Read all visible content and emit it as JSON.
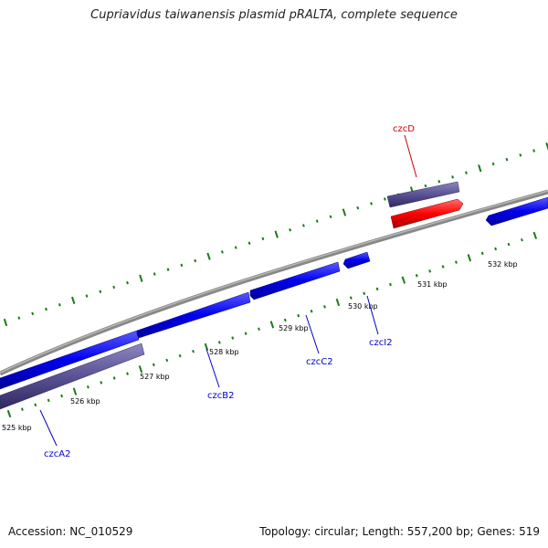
{
  "title": "Cupriavidus taiwanensis plasmid pRALTA, complete sequence",
  "footer": {
    "accession": "Accession: NC_010529",
    "summary": "Topology: circular; Length: 557,200 bp; Genes: 519"
  },
  "colors": {
    "backbone": "#888888",
    "gene_forward": "#0000ee",
    "gene_reverse_track": "#5a5294",
    "highlight": "#ff0000",
    "tick": "#1a7a1a",
    "label_blue": "#0000cc",
    "label_red": "#cc0000"
  },
  "ticks": {
    "labels": [
      "525 kbp",
      "526 kbp",
      "527 kbp",
      "528 kbp",
      "529 kbp",
      "530 kbp",
      "531 kbp",
      "532 kbp"
    ]
  },
  "genes": {
    "labels": [
      "czcD",
      "czcA2",
      "czcB2",
      "czcC2",
      "czcI2"
    ]
  }
}
